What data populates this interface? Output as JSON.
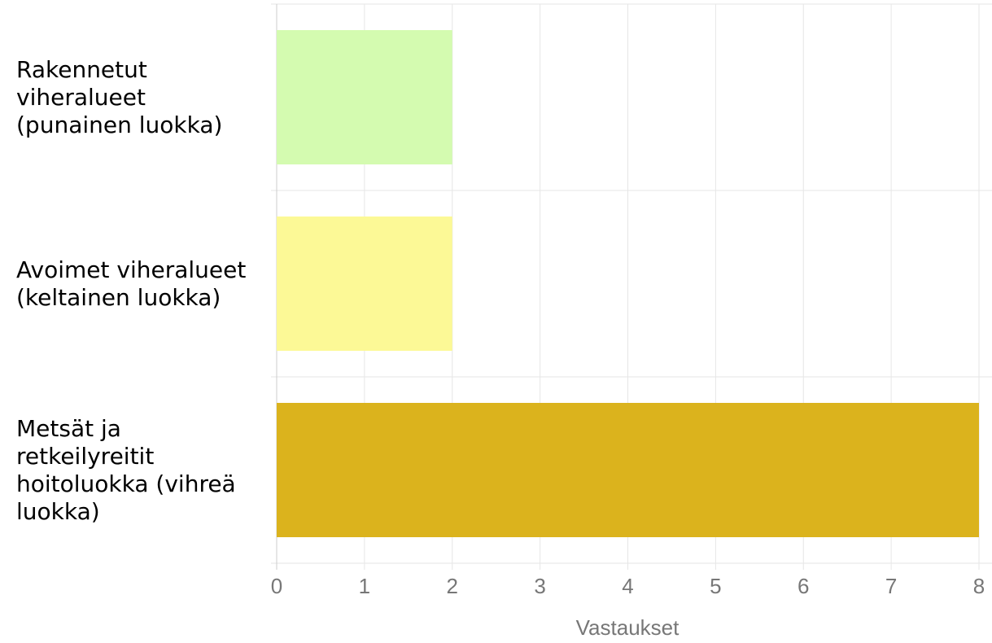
{
  "chart_data": {
    "type": "bar",
    "orientation": "horizontal",
    "categories": [
      "Rakennetut\nviheralueet\n(punainen luokka)",
      "Avoimet viheralueet\n(keltainen luokka)",
      "Metsät ja\nretkeilyreitit\nhoitoluokka (vihreä\nluokka)"
    ],
    "values": [
      2,
      2,
      8
    ],
    "colors": [
      "#d4fbb0",
      "#fcf996",
      "#dbb31d"
    ],
    "xlabel": "Vastaukset",
    "xlim": [
      0,
      8
    ],
    "xticks": [
      0,
      1,
      2,
      3,
      4,
      5,
      6,
      7,
      8
    ],
    "grid": true
  }
}
